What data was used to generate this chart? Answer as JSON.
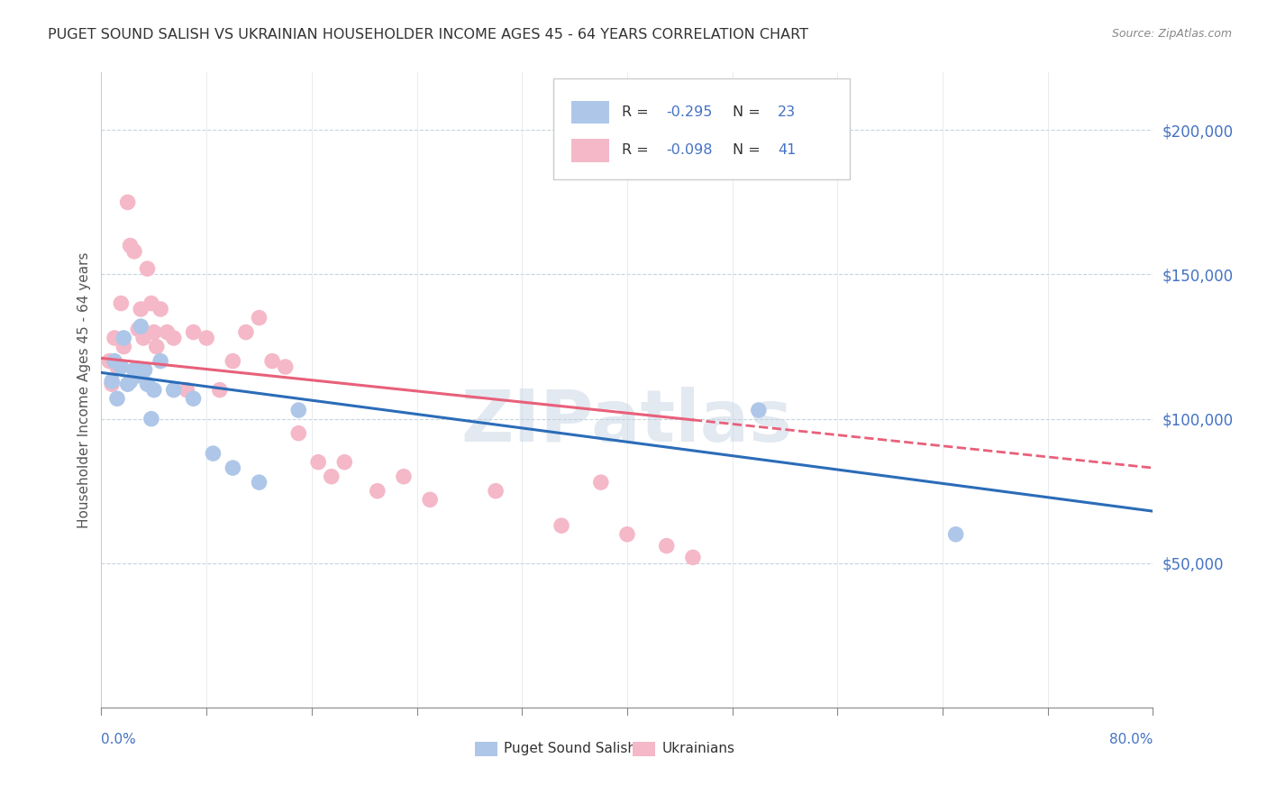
{
  "title": "PUGET SOUND SALISH VS UKRAINIAN HOUSEHOLDER INCOME AGES 45 - 64 YEARS CORRELATION CHART",
  "source": "Source: ZipAtlas.com",
  "ylabel": "Householder Income Ages 45 - 64 years",
  "xlim": [
    0.0,
    80.0
  ],
  "ylim": [
    0,
    220000
  ],
  "yticks": [
    0,
    50000,
    100000,
    150000,
    200000
  ],
  "ytick_labels": [
    "",
    "$50,000",
    "$100,000",
    "$150,000",
    "$200,000"
  ],
  "blue_R": "-0.295",
  "blue_N": "23",
  "pink_R": "-0.098",
  "pink_N": "41",
  "watermark": "ZIPatlas",
  "blue_scatter_color": "#aec6e8",
  "blue_line_color": "#2b6cb8",
  "pink_scatter_color": "#f4b8c8",
  "pink_line_color": "#e8607a",
  "legend_label_blue": "Puget Sound Salish",
  "legend_label_pink": "Ukrainians",
  "blue_line_x0": 0,
  "blue_line_y0": 116000,
  "blue_line_x1": 80,
  "blue_line_y1": 68000,
  "pink_line_x0": 0,
  "pink_line_y0": 121000,
  "pink_line_x1": 80,
  "pink_line_y1": 83000,
  "pink_solid_end": 45,
  "blue_scatter_x": [
    0.8,
    1.0,
    1.2,
    1.5,
    1.7,
    2.0,
    2.2,
    2.5,
    2.8,
    3.0,
    3.3,
    3.5,
    3.8,
    4.0,
    4.5,
    5.5,
    7.0,
    8.5,
    10.0,
    12.0,
    15.0,
    50.0,
    65.0
  ],
  "blue_scatter_y": [
    113000,
    120000,
    107000,
    118000,
    128000,
    112000,
    113000,
    117000,
    115000,
    132000,
    117000,
    112000,
    100000,
    110000,
    120000,
    110000,
    107000,
    88000,
    83000,
    78000,
    103000,
    103000,
    60000
  ],
  "pink_scatter_x": [
    0.6,
    0.8,
    1.0,
    1.2,
    1.5,
    1.7,
    2.0,
    2.2,
    2.5,
    2.8,
    3.0,
    3.2,
    3.5,
    3.8,
    4.0,
    4.2,
    4.5,
    5.0,
    5.5,
    6.5,
    7.0,
    8.0,
    9.0,
    10.0,
    11.0,
    12.0,
    13.0,
    14.0,
    15.0,
    16.5,
    17.5,
    18.5,
    21.0,
    23.0,
    25.0,
    30.0,
    35.0,
    38.0,
    40.0,
    43.0,
    45.0
  ],
  "pink_scatter_y": [
    120000,
    112000,
    128000,
    118000,
    140000,
    125000,
    175000,
    160000,
    158000,
    131000,
    138000,
    128000,
    152000,
    140000,
    130000,
    125000,
    138000,
    130000,
    128000,
    110000,
    130000,
    128000,
    110000,
    120000,
    130000,
    135000,
    120000,
    118000,
    95000,
    85000,
    80000,
    85000,
    75000,
    80000,
    72000,
    75000,
    63000,
    78000,
    60000,
    56000,
    52000
  ]
}
